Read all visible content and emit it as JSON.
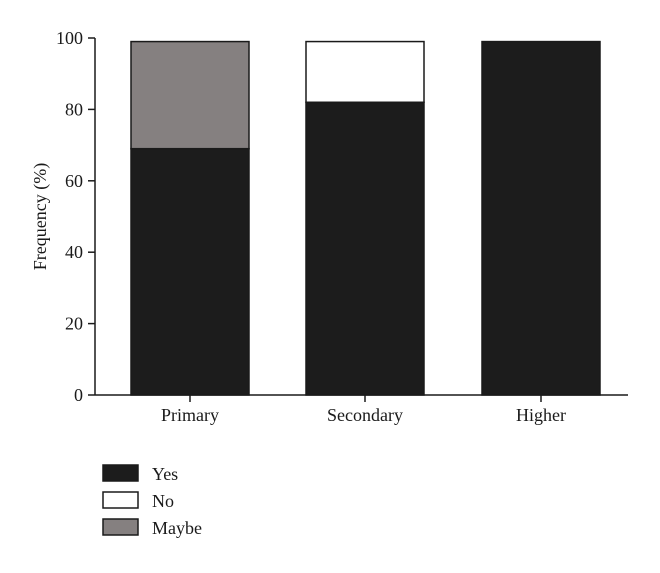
{
  "chart_data": {
    "type": "bar",
    "stacked": true,
    "title": "",
    "xlabel": "",
    "ylabel": "Frequency (%)",
    "ylim": [
      0,
      100
    ],
    "yticks": [
      0,
      20,
      40,
      60,
      80,
      100
    ],
    "categories": [
      "Primary",
      "Secondary",
      "Higher"
    ],
    "series": [
      {
        "name": "Yes",
        "color": "#1c1c1c",
        "values": [
          69,
          82,
          99
        ]
      },
      {
        "name": "No",
        "color": "#ffffff",
        "values": [
          0,
          17,
          0
        ]
      },
      {
        "name": "Maybe",
        "color": "#858080",
        "values": [
          30,
          0,
          0
        ]
      }
    ],
    "legend_position": "bottom-left",
    "grid": false
  }
}
